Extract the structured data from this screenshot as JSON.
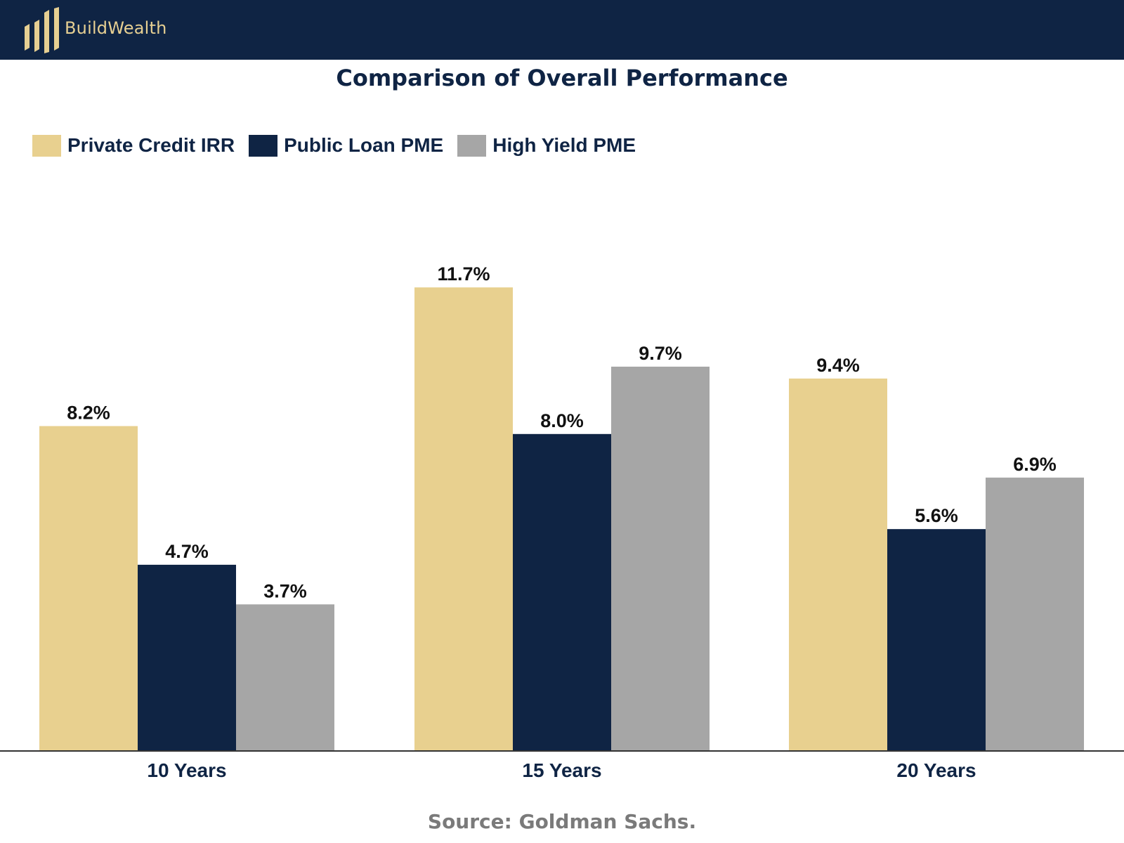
{
  "brand": {
    "name": "BuildWealth",
    "logo_icon": "buildwealth-bars-logo-icon",
    "header_color": "#0f2444",
    "logo_color": "#e6cf92"
  },
  "chart_data": {
    "type": "bar",
    "title": "Comparison of Overall Performance",
    "xlabel": "",
    "ylabel": "",
    "categories": [
      "10 Years",
      "15 Years",
      "20 Years"
    ],
    "ylim": [
      0,
      12
    ],
    "grid": false,
    "legend_position": "top-left",
    "series": [
      {
        "name": "Private Credit IRR",
        "color": "#e8d08f",
        "values": [
          8.2,
          11.7,
          9.4
        ],
        "labels": [
          "8.2%",
          "11.7%",
          "9.4%"
        ]
      },
      {
        "name": "Public Loan PME",
        "color": "#0f2444",
        "values": [
          4.7,
          8.0,
          5.6
        ],
        "labels": [
          "4.7%",
          "8.0%",
          "5.6%"
        ]
      },
      {
        "name": "High Yield PME",
        "color": "#a6a6a6",
        "values": [
          3.7,
          9.7,
          6.9
        ],
        "labels": [
          "3.7%",
          "9.7%",
          "6.9%"
        ]
      }
    ],
    "source": "Source: Goldman Sachs."
  }
}
